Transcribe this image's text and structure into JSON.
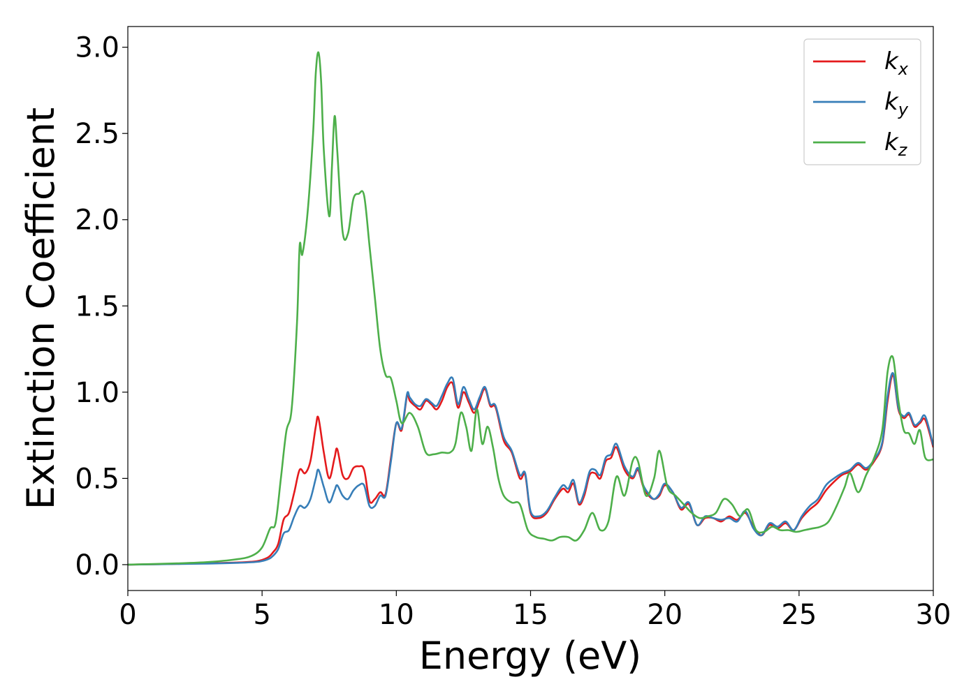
{
  "chart_data": {
    "type": "line",
    "title": "",
    "xlabel": "Energy (eV)",
    "ylabel": "Extinction Coefficient",
    "xlim": [
      0,
      30
    ],
    "ylim": [
      -0.15,
      3.12
    ],
    "xticks": [
      0,
      5,
      10,
      15,
      20,
      25,
      30
    ],
    "xtick_labels": [
      "0",
      "5",
      "10",
      "15",
      "20",
      "25",
      "30"
    ],
    "yticks": [
      0.0,
      0.5,
      1.0,
      1.5,
      2.0,
      2.5,
      3.0
    ],
    "ytick_labels": [
      "0.0",
      "0.5",
      "1.0",
      "1.5",
      "2.0",
      "2.5",
      "3.0"
    ],
    "grid": false,
    "legend_position": "top-right",
    "series": [
      {
        "name": "k_x",
        "base": "k",
        "sub": "x",
        "color": "#e41a1c",
        "x": [
          0,
          2,
          3,
          4,
          4.8,
          5.2,
          5.4,
          5.6,
          5.8,
          6.0,
          6.2,
          6.4,
          6.6,
          6.8,
          7.0,
          7.1,
          7.3,
          7.5,
          7.7,
          7.8,
          8.0,
          8.2,
          8.4,
          8.6,
          8.8,
          9.0,
          9.2,
          9.4,
          9.6,
          9.8,
          10.0,
          10.2,
          10.4,
          10.5,
          10.7,
          10.9,
          11.1,
          11.3,
          11.5,
          11.7,
          11.9,
          12.1,
          12.3,
          12.5,
          12.7,
          12.9,
          13.1,
          13.3,
          13.5,
          13.7,
          14.0,
          14.3,
          14.6,
          14.8,
          15.0,
          15.3,
          15.6,
          15.9,
          16.2,
          16.4,
          16.6,
          16.8,
          17.0,
          17.2,
          17.4,
          17.6,
          17.8,
          18.0,
          18.2,
          18.5,
          18.8,
          19.0,
          19.2,
          19.4,
          19.6,
          19.8,
          20.0,
          20.3,
          20.6,
          20.9,
          21.2,
          21.5,
          21.8,
          22.1,
          22.4,
          22.7,
          23.0,
          23.3,
          23.6,
          23.9,
          24.2,
          24.5,
          24.8,
          25.1,
          25.4,
          25.7,
          26.0,
          26.3,
          26.6,
          26.9,
          27.2,
          27.5,
          27.8,
          28.1,
          28.3,
          28.5,
          28.7,
          28.9,
          29.1,
          29.3,
          29.5,
          29.7,
          30.0
        ],
        "y": [
          0.0,
          0.005,
          0.008,
          0.012,
          0.02,
          0.04,
          0.07,
          0.12,
          0.26,
          0.3,
          0.42,
          0.55,
          0.53,
          0.6,
          0.8,
          0.85,
          0.65,
          0.5,
          0.62,
          0.67,
          0.52,
          0.5,
          0.56,
          0.57,
          0.55,
          0.37,
          0.38,
          0.42,
          0.41,
          0.62,
          0.82,
          0.78,
          0.98,
          0.95,
          0.92,
          0.9,
          0.95,
          0.93,
          0.9,
          0.95,
          1.03,
          1.05,
          0.91,
          1.0,
          0.94,
          0.88,
          0.95,
          1.02,
          0.92,
          0.91,
          0.72,
          0.65,
          0.5,
          0.52,
          0.3,
          0.27,
          0.3,
          0.38,
          0.44,
          0.42,
          0.47,
          0.35,
          0.4,
          0.52,
          0.53,
          0.5,
          0.6,
          0.62,
          0.68,
          0.55,
          0.5,
          0.55,
          0.45,
          0.4,
          0.38,
          0.4,
          0.46,
          0.42,
          0.32,
          0.35,
          0.23,
          0.27,
          0.27,
          0.25,
          0.28,
          0.26,
          0.3,
          0.22,
          0.17,
          0.23,
          0.21,
          0.24,
          0.2,
          0.27,
          0.32,
          0.36,
          0.43,
          0.48,
          0.52,
          0.54,
          0.58,
          0.55,
          0.6,
          0.7,
          0.95,
          1.1,
          0.9,
          0.85,
          0.87,
          0.8,
          0.82,
          0.84,
          0.68
        ]
      },
      {
        "name": "k_y",
        "base": "k",
        "sub": "y",
        "color": "#377eb8",
        "x": [
          0,
          2,
          3,
          4,
          4.8,
          5.2,
          5.4,
          5.6,
          5.8,
          6.0,
          6.2,
          6.4,
          6.6,
          6.8,
          7.0,
          7.1,
          7.3,
          7.5,
          7.7,
          7.8,
          8.0,
          8.2,
          8.4,
          8.6,
          8.8,
          9.0,
          9.2,
          9.4,
          9.6,
          9.8,
          10.0,
          10.2,
          10.4,
          10.5,
          10.7,
          10.9,
          11.1,
          11.3,
          11.5,
          11.7,
          11.9,
          12.1,
          12.3,
          12.5,
          12.7,
          12.9,
          13.1,
          13.3,
          13.5,
          13.7,
          14.0,
          14.3,
          14.6,
          14.8,
          15.0,
          15.3,
          15.6,
          15.9,
          16.2,
          16.4,
          16.6,
          16.8,
          17.0,
          17.2,
          17.4,
          17.6,
          17.8,
          18.0,
          18.2,
          18.5,
          18.8,
          19.0,
          19.2,
          19.4,
          19.6,
          19.8,
          20.0,
          20.3,
          20.6,
          20.9,
          21.2,
          21.5,
          21.8,
          22.1,
          22.4,
          22.7,
          23.0,
          23.3,
          23.6,
          23.9,
          24.2,
          24.5,
          24.8,
          25.1,
          25.4,
          25.7,
          26.0,
          26.3,
          26.6,
          26.9,
          27.2,
          27.5,
          27.8,
          28.1,
          28.3,
          28.5,
          28.7,
          28.9,
          29.1,
          29.3,
          29.5,
          29.7,
          30.0
        ],
        "y": [
          0.0,
          0.004,
          0.006,
          0.01,
          0.016,
          0.03,
          0.05,
          0.09,
          0.18,
          0.2,
          0.28,
          0.34,
          0.33,
          0.38,
          0.5,
          0.55,
          0.45,
          0.36,
          0.43,
          0.46,
          0.4,
          0.38,
          0.43,
          0.46,
          0.46,
          0.34,
          0.34,
          0.4,
          0.4,
          0.6,
          0.82,
          0.79,
          0.99,
          0.97,
          0.93,
          0.92,
          0.96,
          0.94,
          0.92,
          0.98,
          1.05,
          1.08,
          0.93,
          1.03,
          0.96,
          0.9,
          0.97,
          1.03,
          0.93,
          0.92,
          0.74,
          0.66,
          0.52,
          0.53,
          0.31,
          0.28,
          0.31,
          0.39,
          0.46,
          0.44,
          0.49,
          0.36,
          0.42,
          0.54,
          0.55,
          0.52,
          0.62,
          0.64,
          0.7,
          0.57,
          0.51,
          0.56,
          0.46,
          0.41,
          0.38,
          0.41,
          0.47,
          0.42,
          0.33,
          0.36,
          0.23,
          0.28,
          0.27,
          0.26,
          0.27,
          0.25,
          0.31,
          0.21,
          0.17,
          0.24,
          0.22,
          0.25,
          0.2,
          0.28,
          0.34,
          0.38,
          0.46,
          0.5,
          0.53,
          0.55,
          0.59,
          0.56,
          0.61,
          0.71,
          0.98,
          1.11,
          0.91,
          0.86,
          0.88,
          0.81,
          0.83,
          0.86,
          0.69
        ]
      },
      {
        "name": "k_z",
        "base": "k",
        "sub": "z",
        "color": "#4daf4a",
        "x": [
          0,
          2,
          3,
          4,
          4.6,
          5.0,
          5.3,
          5.5,
          5.7,
          5.9,
          6.1,
          6.3,
          6.4,
          6.5,
          6.7,
          6.9,
          7.0,
          7.1,
          7.2,
          7.3,
          7.5,
          7.6,
          7.7,
          7.8,
          8.0,
          8.2,
          8.4,
          8.6,
          8.8,
          9.0,
          9.2,
          9.4,
          9.6,
          9.8,
          10.0,
          10.2,
          10.5,
          10.8,
          11.1,
          11.4,
          11.7,
          12.0,
          12.2,
          12.4,
          12.6,
          12.8,
          13.0,
          13.2,
          13.4,
          13.6,
          13.8,
          14.0,
          14.3,
          14.6,
          14.9,
          15.2,
          15.5,
          15.8,
          16.1,
          16.4,
          16.7,
          17.0,
          17.3,
          17.6,
          17.9,
          18.2,
          18.5,
          18.8,
          19.0,
          19.3,
          19.6,
          19.8,
          20.1,
          20.4,
          20.7,
          21.0,
          21.3,
          21.6,
          21.9,
          22.2,
          22.5,
          22.8,
          23.1,
          23.4,
          23.7,
          24.0,
          24.3,
          24.6,
          24.9,
          25.2,
          25.5,
          25.8,
          26.1,
          26.4,
          26.7,
          26.9,
          27.2,
          27.5,
          27.8,
          28.1,
          28.3,
          28.5,
          28.7,
          28.9,
          29.1,
          29.3,
          29.5,
          29.7,
          30.0
        ],
        "y": [
          0.0,
          0.008,
          0.015,
          0.03,
          0.05,
          0.1,
          0.21,
          0.24,
          0.5,
          0.77,
          0.9,
          1.4,
          1.85,
          1.8,
          2.05,
          2.5,
          2.85,
          2.97,
          2.8,
          2.4,
          2.02,
          2.3,
          2.6,
          2.4,
          1.93,
          1.92,
          2.12,
          2.15,
          2.14,
          1.85,
          1.55,
          1.25,
          1.1,
          1.08,
          0.95,
          0.82,
          0.88,
          0.8,
          0.65,
          0.64,
          0.65,
          0.65,
          0.7,
          0.88,
          0.8,
          0.66,
          0.9,
          0.7,
          0.8,
          0.68,
          0.5,
          0.4,
          0.36,
          0.35,
          0.2,
          0.16,
          0.15,
          0.14,
          0.16,
          0.16,
          0.14,
          0.2,
          0.3,
          0.2,
          0.25,
          0.51,
          0.4,
          0.6,
          0.6,
          0.4,
          0.5,
          0.66,
          0.45,
          0.4,
          0.35,
          0.3,
          0.27,
          0.28,
          0.3,
          0.38,
          0.35,
          0.28,
          0.32,
          0.2,
          0.19,
          0.22,
          0.2,
          0.2,
          0.19,
          0.2,
          0.21,
          0.22,
          0.25,
          0.34,
          0.45,
          0.53,
          0.42,
          0.52,
          0.62,
          0.78,
          1.12,
          1.2,
          0.95,
          0.78,
          0.76,
          0.7,
          0.78,
          0.62,
          0.61
        ]
      }
    ]
  }
}
